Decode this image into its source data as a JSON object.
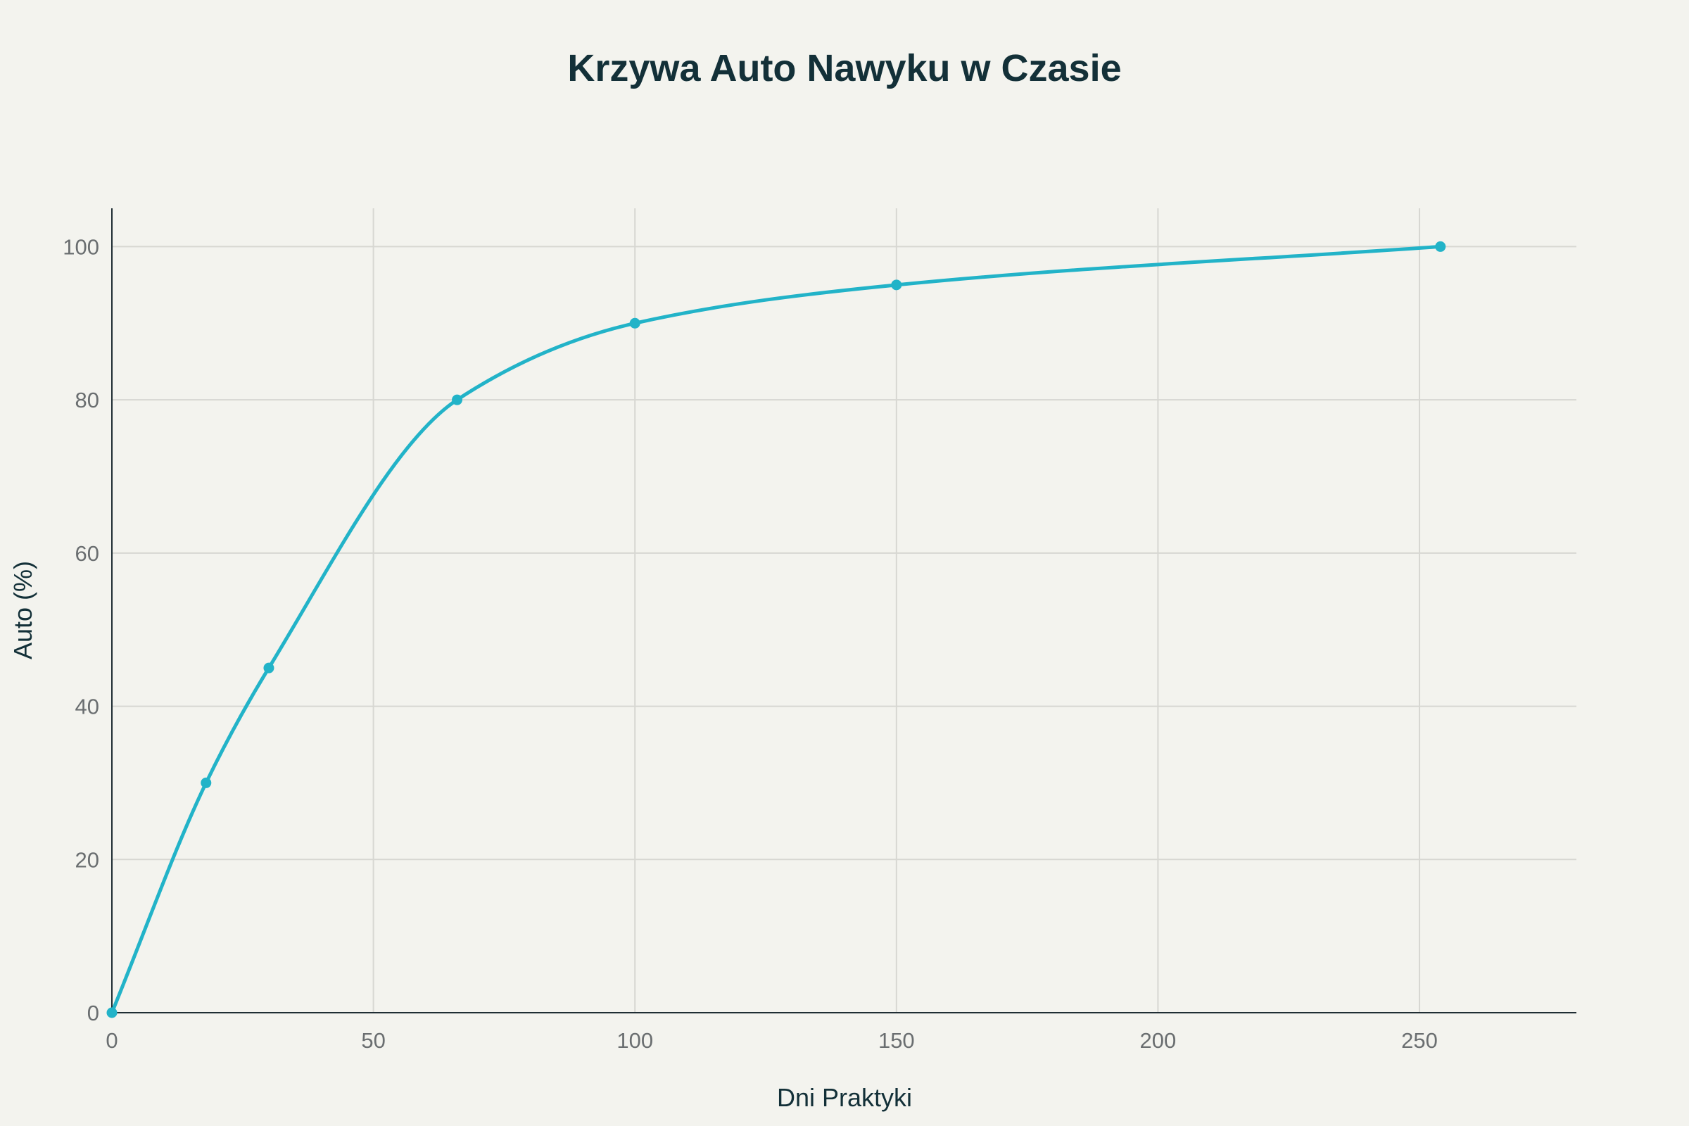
{
  "chart_data": {
    "type": "line",
    "title": "Krzywa Auto Nawyku w Czasie",
    "xlabel": "Dni Praktyki",
    "ylabel": "Auto (%)",
    "x": [
      0,
      18,
      30,
      66,
      100,
      150,
      254
    ],
    "series": [
      {
        "values": [
          0,
          30,
          45,
          80,
          90,
          95,
          100
        ]
      }
    ],
    "xlim": [
      0,
      280
    ],
    "ylim": [
      0,
      105
    ],
    "xticks": [
      0,
      50,
      100,
      150,
      200,
      250
    ],
    "yticks": [
      0,
      20,
      40,
      60,
      80,
      100
    ],
    "grid": true,
    "legend": false,
    "colors": {
      "line": "#22b3c8",
      "background": "#f3f3ee",
      "grid": "#d7d7d2",
      "axis": "#1f2d33",
      "title": "#133038",
      "tick_text": "#6a6e70",
      "label_text": "#133038"
    }
  }
}
